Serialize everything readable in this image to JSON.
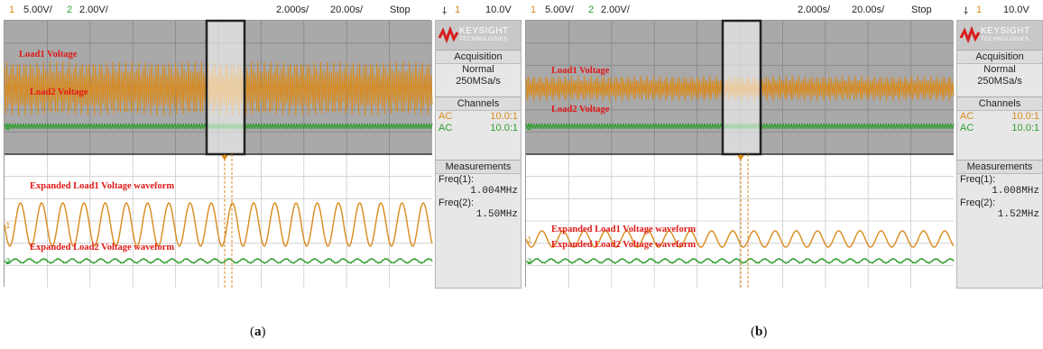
{
  "colors": {
    "ch1": "#d98a1c",
    "ch2": "#2e9d2e",
    "label": "#e01818"
  },
  "panels": [
    {
      "caption": "a",
      "topbar": {
        "ch1_num": "1",
        "ch1_scale": "5.00V/",
        "ch2_num": "2",
        "ch2_scale": "2.00V/",
        "time_div": "2.000s/",
        "zoom_div": "20.00s/",
        "status": "Stop",
        "trig_num": "1",
        "trig_level": "10.0V"
      },
      "labels": {
        "load1": "Load1 Voltage",
        "load2": "Load2 Voltage",
        "exp_load1": "Expanded Load1 Voltage waveform",
        "exp_load2": "Expanded Load2 Voltage waveform"
      },
      "sidebar": {
        "logo": "KEYSIGHT",
        "logo_sub": "TECHNOLOGIES",
        "acq_title": "Acquisition",
        "acq_mode": "Normal",
        "acq_rate": "250MSa/s",
        "channels_title": "Channels",
        "ch1": {
          "coupling": "AC",
          "probe": "10.0:1"
        },
        "ch2": {
          "coupling": "AC",
          "probe": "10.0:1"
        },
        "meas_title": "Measurements",
        "freq1_label": "Freq(1):",
        "freq1_value": "1.004MHz",
        "freq2_label": "Freq(2):",
        "freq2_value": "1.50MHz"
      }
    },
    {
      "caption": "b",
      "topbar": {
        "ch1_num": "1",
        "ch1_scale": "5.00V/",
        "ch2_num": "2",
        "ch2_scale": "2.00V/",
        "time_div": "2.000s/",
        "zoom_div": "20.00s/",
        "status": "Stop",
        "trig_num": "1",
        "trig_level": "10.0V"
      },
      "labels": {
        "load1": "Load1 Voltage",
        "load2": "Load2 Voltage",
        "exp_load1": "Expanded Load1 Voltage waveform",
        "exp_load2": "Expanded Load2 Voltage waveform"
      },
      "sidebar": {
        "logo": "KEYSIGHT",
        "logo_sub": "TECHNOLOGIES",
        "acq_title": "Acquisition",
        "acq_mode": "Normal",
        "acq_rate": "250MSa/s",
        "channels_title": "Channels",
        "ch1": {
          "coupling": "AC",
          "probe": "10.0:1"
        },
        "ch2": {
          "coupling": "AC",
          "probe": "10.0:1"
        },
        "meas_title": "Measurements",
        "freq1_label": "Freq(1):",
        "freq1_value": "1.008MHz",
        "freq2_label": "Freq(2):",
        "freq2_value": "1.52MHz"
      }
    }
  ],
  "waveform": {
    "a": {
      "ch1_amplitude": "large"
    },
    "b": {
      "ch1_amplitude": "small"
    }
  }
}
